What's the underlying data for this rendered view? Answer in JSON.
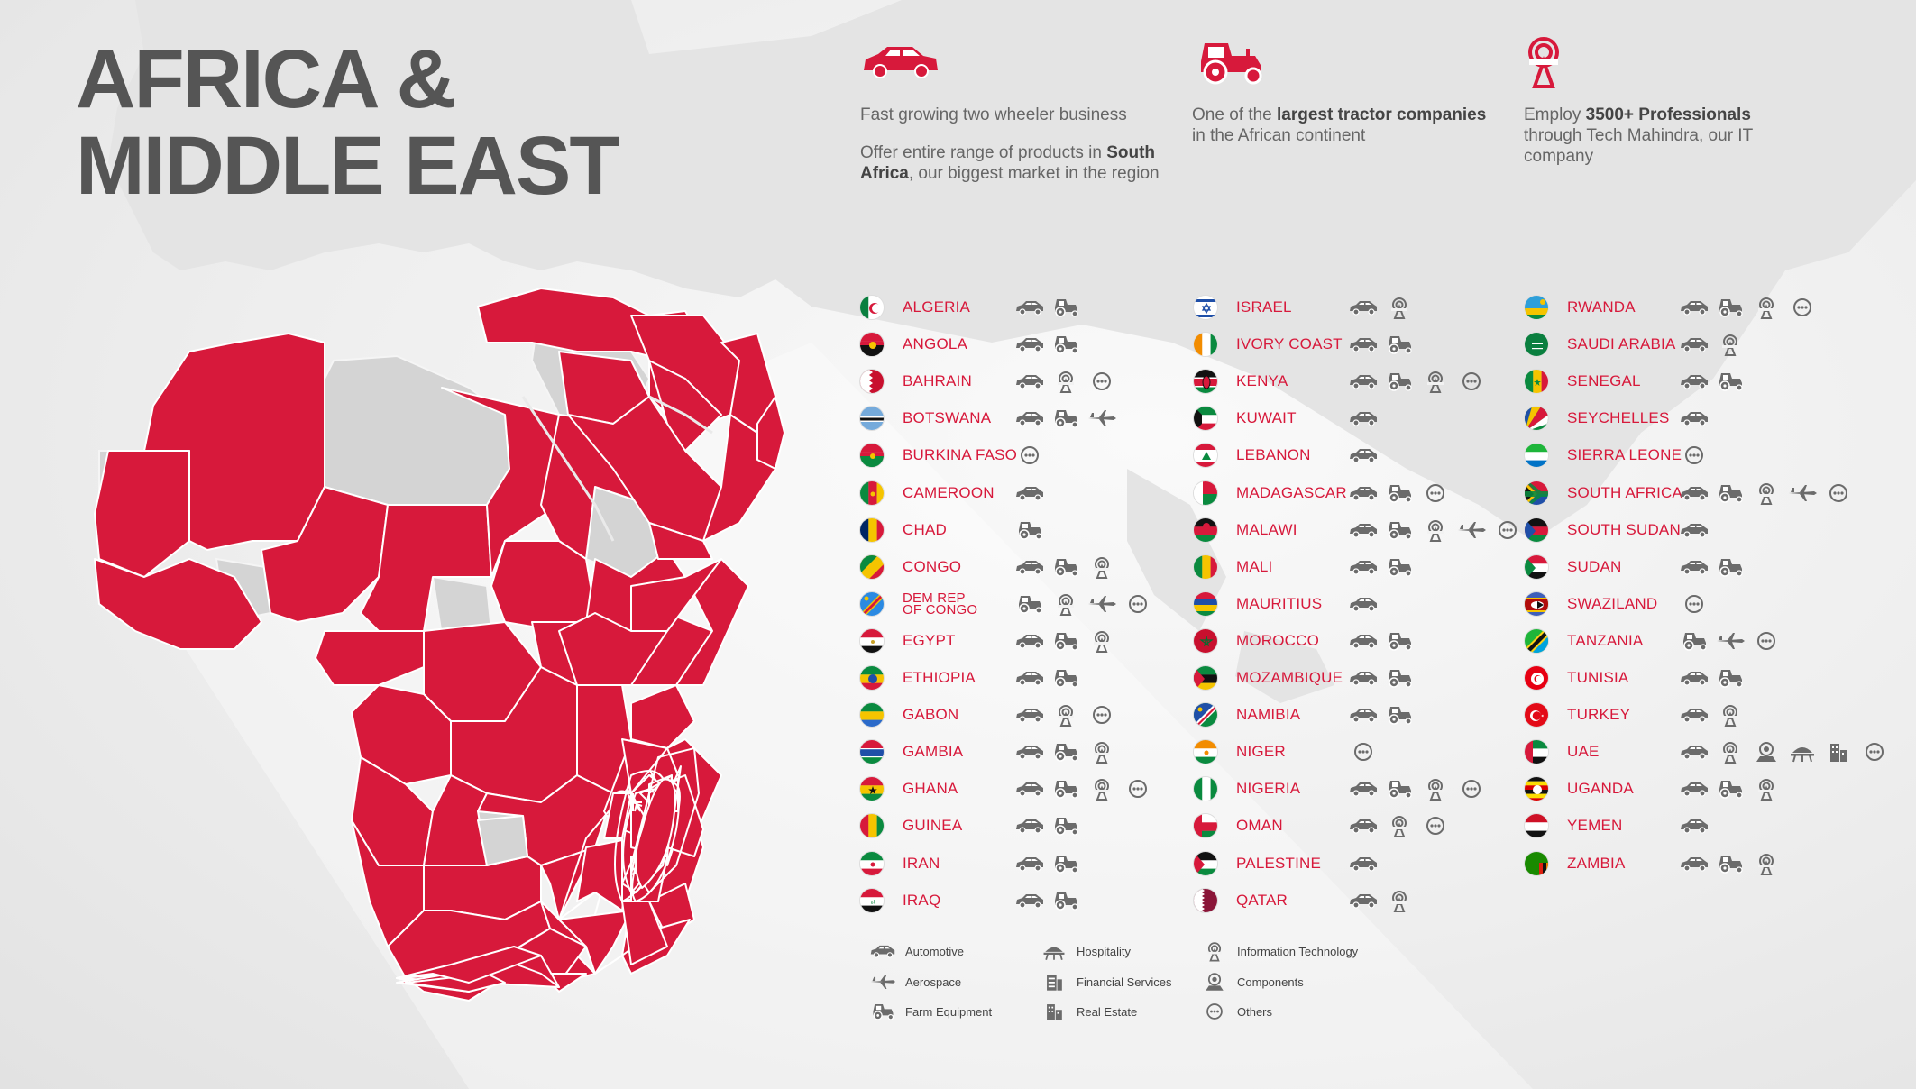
{
  "title": {
    "line1": "AFRICA &",
    "line2": "MIDDLE EAST"
  },
  "highlights": [
    {
      "icon": "car-icon",
      "line1": "Fast growing two wheeler business",
      "pre": "Offer entire range of products in ",
      "bold": "South Africa",
      "post": ", our biggest market in the region"
    },
    {
      "icon": "tractor-icon",
      "pre": "One of the ",
      "bold": "largest tractor companies",
      "post": " in the African continent"
    },
    {
      "icon": "it-icon",
      "pre": "Employ ",
      "bold": "3500+ Professionals",
      "post": " through Tech Mahindra, our IT company"
    }
  ],
  "colors": {
    "accent": "#d7193b",
    "icon": "#6b6b6b",
    "land": "#dcdcdc",
    "title": "#555555"
  },
  "countries": [
    [
      {
        "name": "ALGERIA",
        "icons": [
          "auto",
          "farm"
        ]
      },
      {
        "name": "ANGOLA",
        "icons": [
          "auto",
          "farm"
        ]
      },
      {
        "name": "BAHRAIN",
        "icons": [
          "auto",
          "it",
          "others"
        ]
      },
      {
        "name": "BOTSWANA",
        "icons": [
          "auto",
          "farm",
          "aero"
        ]
      },
      {
        "name": "BURKINA FASO",
        "icons": [
          "others"
        ]
      },
      {
        "name": "CAMEROON",
        "icons": [
          "auto"
        ]
      },
      {
        "name": "CHAD",
        "icons": [
          "farm"
        ]
      },
      {
        "name": "CONGO",
        "icons": [
          "auto",
          "farm",
          "it"
        ]
      },
      {
        "name": "DEM REP",
        "name2": "OF CONGO",
        "icons": [
          "farm",
          "it",
          "aero",
          "others"
        ]
      },
      {
        "name": "EGYPT",
        "icons": [
          "auto",
          "farm",
          "it"
        ]
      },
      {
        "name": "ETHIOPIA",
        "icons": [
          "auto",
          "farm"
        ]
      },
      {
        "name": "GABON",
        "icons": [
          "auto",
          "it",
          "others"
        ]
      },
      {
        "name": "GAMBIA",
        "icons": [
          "auto",
          "farm",
          "it"
        ]
      },
      {
        "name": "GHANA",
        "icons": [
          "auto",
          "farm",
          "it",
          "others"
        ]
      },
      {
        "name": "GUINEA",
        "icons": [
          "auto",
          "farm"
        ]
      },
      {
        "name": "IRAN",
        "icons": [
          "auto",
          "farm"
        ]
      },
      {
        "name": "IRAQ",
        "icons": [
          "auto",
          "farm"
        ]
      }
    ],
    [
      {
        "name": "ISRAEL",
        "icons": [
          "auto",
          "it"
        ]
      },
      {
        "name": "IVORY COAST",
        "icons": [
          "auto",
          "farm"
        ]
      },
      {
        "name": "KENYA",
        "icons": [
          "auto",
          "farm",
          "it",
          "others"
        ]
      },
      {
        "name": "KUWAIT",
        "icons": [
          "auto"
        ]
      },
      {
        "name": "LEBANON",
        "icons": [
          "auto"
        ]
      },
      {
        "name": "MADAGASCAR",
        "icons": [
          "auto",
          "farm",
          "others"
        ]
      },
      {
        "name": "MALAWI",
        "icons": [
          "auto",
          "farm",
          "it",
          "aero",
          "others"
        ]
      },
      {
        "name": "MALI",
        "icons": [
          "auto",
          "farm"
        ]
      },
      {
        "name": "MAURITIUS",
        "icons": [
          "auto"
        ]
      },
      {
        "name": "MOROCCO",
        "icons": [
          "auto",
          "farm"
        ]
      },
      {
        "name": "MOZAMBIQUE",
        "icons": [
          "auto",
          "farm"
        ]
      },
      {
        "name": "NAMIBIA",
        "icons": [
          "auto",
          "farm"
        ]
      },
      {
        "name": "NIGER",
        "icons": [
          "others"
        ]
      },
      {
        "name": "NIGERIA",
        "icons": [
          "auto",
          "farm",
          "it",
          "others"
        ]
      },
      {
        "name": "OMAN",
        "icons": [
          "auto",
          "it",
          "others"
        ]
      },
      {
        "name": "PALESTINE",
        "icons": [
          "auto"
        ]
      },
      {
        "name": "QATAR",
        "icons": [
          "auto",
          "it"
        ]
      }
    ],
    [
      {
        "name": "RWANDA",
        "icons": [
          "auto",
          "farm",
          "it",
          "others"
        ]
      },
      {
        "name": "SAUDI ARABIA",
        "icons": [
          "auto",
          "it"
        ]
      },
      {
        "name": "SENEGAL",
        "icons": [
          "auto",
          "farm"
        ]
      },
      {
        "name": "SEYCHELLES",
        "icons": [
          "auto"
        ]
      },
      {
        "name": "SIERRA LEONE",
        "icons": [
          "others"
        ]
      },
      {
        "name": "SOUTH AFRICA",
        "icons": [
          "auto",
          "farm",
          "it",
          "aero",
          "others"
        ]
      },
      {
        "name": "SOUTH SUDAN",
        "icons": [
          "auto"
        ]
      },
      {
        "name": "SUDAN",
        "icons": [
          "auto",
          "farm"
        ]
      },
      {
        "name": "SWAZILAND",
        "icons": [
          "others"
        ]
      },
      {
        "name": "TANZANIA",
        "icons": [
          "farm",
          "aero",
          "others"
        ]
      },
      {
        "name": "TUNISIA",
        "icons": [
          "auto",
          "farm"
        ]
      },
      {
        "name": "TURKEY",
        "icons": [
          "auto",
          "it"
        ]
      },
      {
        "name": "UAE",
        "icons": [
          "auto",
          "it",
          "components",
          "hospitality",
          "realestate",
          "others"
        ]
      },
      {
        "name": "UGANDA",
        "icons": [
          "auto",
          "farm",
          "it"
        ]
      },
      {
        "name": "YEMEN",
        "icons": [
          "auto"
        ]
      },
      {
        "name": "ZAMBIA",
        "icons": [
          "auto",
          "farm",
          "it"
        ]
      }
    ]
  ],
  "legend": [
    {
      "icon": "auto",
      "label": "Automotive"
    },
    {
      "icon": "aero",
      "label": "Aerospace"
    },
    {
      "icon": "farm",
      "label": "Farm Equipment"
    },
    {
      "icon": "hospitality",
      "label": "Hospitality"
    },
    {
      "icon": "finance",
      "label": "Financial Services"
    },
    {
      "icon": "realestate",
      "label": "Real Estate"
    },
    {
      "icon": "it",
      "label": "Information Technology"
    },
    {
      "icon": "components",
      "label": "Components"
    },
    {
      "icon": "others",
      "label": "Others"
    }
  ]
}
